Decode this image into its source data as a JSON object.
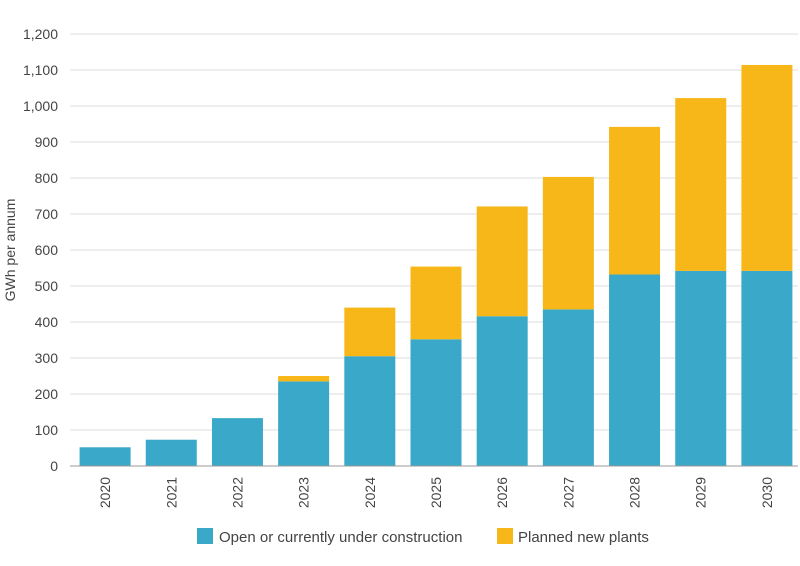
{
  "chart_data": {
    "type": "bar",
    "stacked": true,
    "title": "",
    "xlabel": "",
    "ylabel": "GWh per annum",
    "ylim": [
      0,
      1200
    ],
    "yticks": [
      0,
      100,
      200,
      300,
      400,
      500,
      600,
      700,
      800,
      900,
      1000,
      1100,
      1200
    ],
    "ytick_labels": [
      "0",
      "100",
      "200",
      "300",
      "400",
      "500",
      "600",
      "700",
      "800",
      "900",
      "1,000",
      "1,100",
      "1,200"
    ],
    "categories": [
      "2020",
      "2021",
      "2022",
      "2023",
      "2024",
      "2025",
      "2026",
      "2027",
      "2028",
      "2029",
      "2030"
    ],
    "series": [
      {
        "name": "Open or currently under construction",
        "color": "#3aa8c8",
        "values": [
          52,
          73,
          133,
          235,
          305,
          352,
          416,
          435,
          532,
          542,
          542
        ]
      },
      {
        "name": "Planned new plants",
        "color": "#f7b719",
        "values": [
          0,
          0,
          0,
          15,
          135,
          202,
          305,
          368,
          410,
          480,
          572
        ]
      }
    ],
    "grid": true,
    "legend_position": "bottom"
  }
}
